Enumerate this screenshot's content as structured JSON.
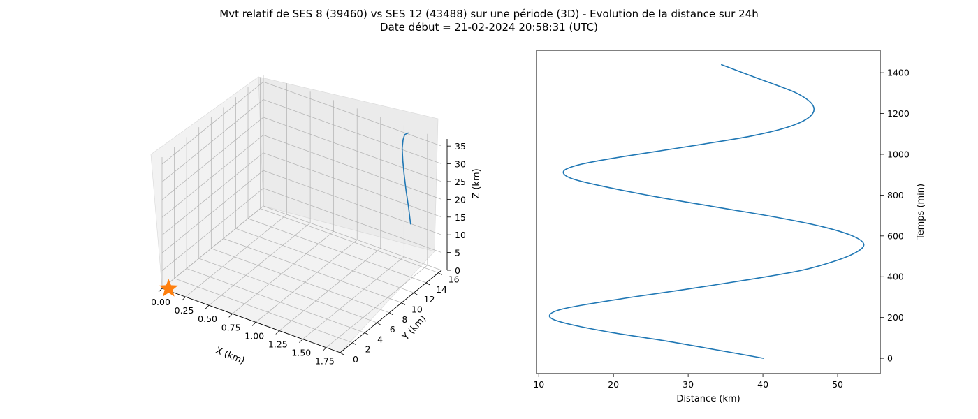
{
  "title": {
    "line1": "Mvt relatif de SES 8 (39460) vs SES 12 (43488) sur une période (3D) - Evolution de la distance sur 24h",
    "line2": "Date début = 21-02-2024 20:58:31 (UTC)"
  },
  "colors": {
    "series": "#1f77b4",
    "marker": "#ff7f0e",
    "pane": "#f2f2f2",
    "grid": "#b0b0b0"
  },
  "chart_data": [
    {
      "type": "line3d",
      "xlabel": "X (km)",
      "ylabel": "Y (km)",
      "zlabel": "Z (km)",
      "xticks": [
        "0.00",
        "0.25",
        "0.50",
        "0.75",
        "1.00",
        "1.25",
        "1.50",
        "1.75"
      ],
      "yticks": [
        "0",
        "2",
        "4",
        "6",
        "8",
        "10",
        "12",
        "14",
        "16"
      ],
      "zticks": [
        "0",
        "5",
        "10",
        "15",
        "20",
        "25",
        "30",
        "35"
      ],
      "xlim": [
        0,
        1.9
      ],
      "ylim": [
        0,
        16.5
      ],
      "zlim": [
        0,
        37
      ],
      "grid": true,
      "marker": {
        "shape": "star",
        "x": 0.05,
        "y": 0.3,
        "z": 0
      },
      "series": [
        {
          "x": [
            1.78,
            1.7,
            1.62,
            1.56,
            1.52,
            1.5,
            1.51,
            1.54,
            1.6
          ],
          "y": [
            13.3,
            14.2,
            15.0,
            15.6,
            16.0,
            16.2,
            16.2,
            16.0,
            15.7
          ],
          "z": [
            16.3,
            19.0,
            22.0,
            25.0,
            28.0,
            31.0,
            33.5,
            35.5,
            37.0
          ]
        }
      ]
    },
    {
      "type": "line",
      "xlabel": "Distance (km)",
      "ylabel": "Temps (min)",
      "xticks": [
        10,
        20,
        30,
        40,
        50
      ],
      "yticks": [
        0,
        200,
        400,
        600,
        800,
        1000,
        1200,
        1400
      ],
      "xlim": [
        9.7,
        55.7
      ],
      "ylim": [
        -75,
        1510
      ],
      "grid": false,
      "series": [
        {
          "x": [
            40.1,
            34.0,
            27.0,
            20.0,
            15.0,
            12.0,
            11.5,
            13.0,
            16.5,
            22.5,
            30.0,
            38.0,
            45.0,
            49.5,
            52.5,
            53.5,
            52.0,
            48.0,
            42.0,
            34.0,
            26.0,
            19.0,
            14.5,
            13.3,
            15.0,
            19.0,
            25.0,
            32.0,
            38.5,
            43.5,
            46.3,
            46.7,
            44.5,
            39.5,
            34.4
          ],
          "y": [
            0,
            40,
            85,
            125,
            160,
            190,
            215,
            240,
            265,
            300,
            340,
            385,
            430,
            475,
            520,
            560,
            600,
            645,
            690,
            740,
            790,
            840,
            880,
            915,
            945,
            975,
            1010,
            1050,
            1090,
            1135,
            1185,
            1240,
            1300,
            1370,
            1440
          ]
        }
      ]
    }
  ]
}
